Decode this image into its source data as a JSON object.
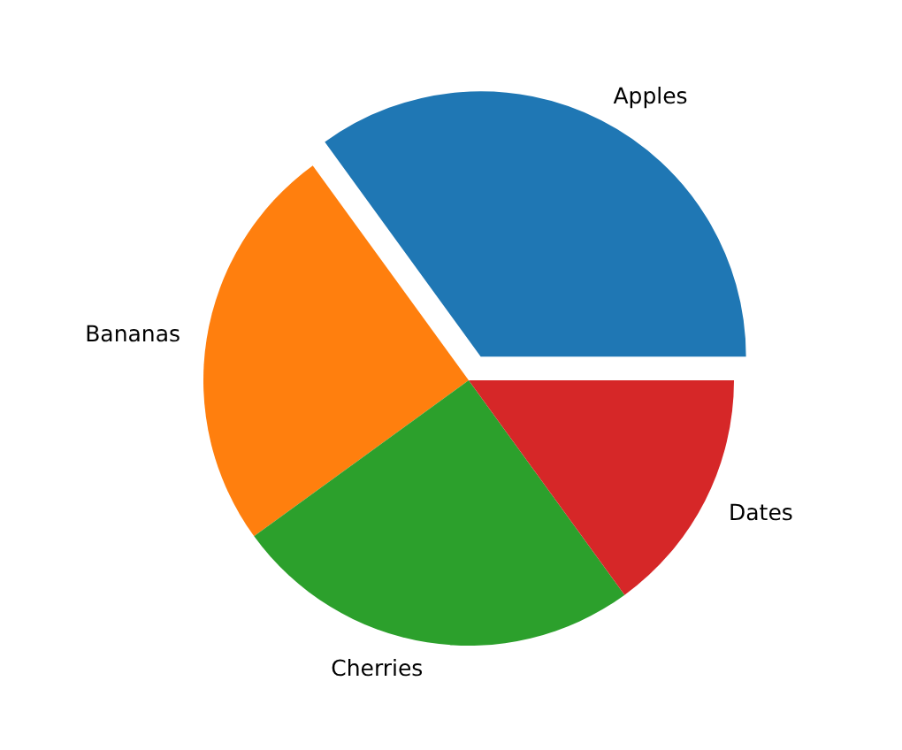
{
  "chart_data": {
    "type": "pie",
    "categories": [
      "Apples",
      "Bananas",
      "Cherries",
      "Dates"
    ],
    "values": [
      35,
      25,
      25,
      15
    ],
    "colors": [
      "#1f77b4",
      "#ff7f0e",
      "#2ca02c",
      "#d62728"
    ]
  }
}
